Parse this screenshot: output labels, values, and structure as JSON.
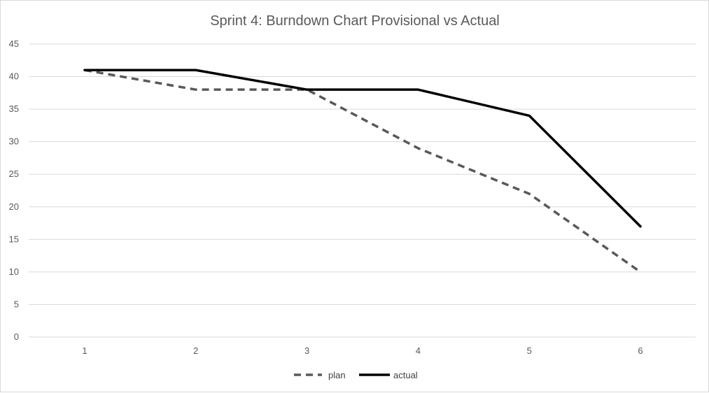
{
  "chart_data": {
    "type": "line",
    "title": "Sprint 4: Burndown Chart Provisional vs Actual",
    "xlabel": "",
    "ylabel": "",
    "x": [
      1,
      2,
      3,
      4,
      5,
      6
    ],
    "x_tick_labels": [
      "1",
      "2",
      "3",
      "4",
      "5",
      "6"
    ],
    "ylim": [
      0,
      45
    ],
    "y_ticks": [
      0,
      5,
      10,
      15,
      20,
      25,
      30,
      35,
      40,
      45
    ],
    "grid": true,
    "legend_position": "bottom",
    "series": [
      {
        "name": "plan",
        "values": [
          41,
          38,
          38,
          29,
          22,
          10
        ],
        "color": "#595959",
        "style": "dashed"
      },
      {
        "name": "actual",
        "values": [
          41,
          41,
          38,
          38,
          34,
          17
        ],
        "color": "#000000",
        "style": "solid"
      }
    ]
  }
}
